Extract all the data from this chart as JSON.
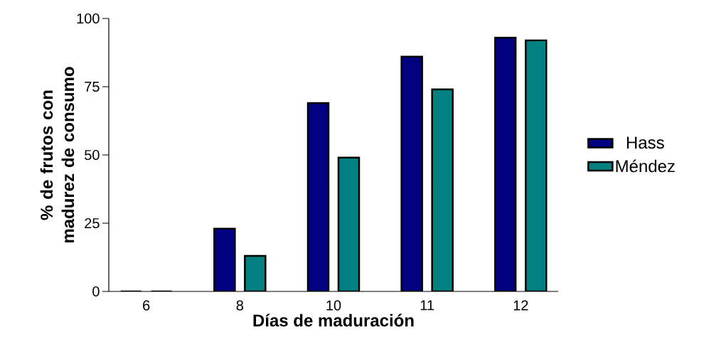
{
  "chart_data": {
    "type": "bar",
    "xlabel": "Días de maduración",
    "ylabel": "% de frutos con madurez de consumo",
    "categories": [
      "6",
      "8",
      "10",
      "11",
      "12"
    ],
    "series": [
      {
        "name": "Hass",
        "color": "#000080",
        "values": [
          0,
          23,
          69,
          86,
          93
        ]
      },
      {
        "name": "Méndez",
        "color": "#008080",
        "values": [
          0,
          13,
          49,
          74,
          92
        ]
      }
    ],
    "ylim": [
      0,
      100
    ],
    "yticks": [
      0,
      25,
      50,
      75,
      100
    ],
    "grid": false,
    "legend": "right"
  }
}
